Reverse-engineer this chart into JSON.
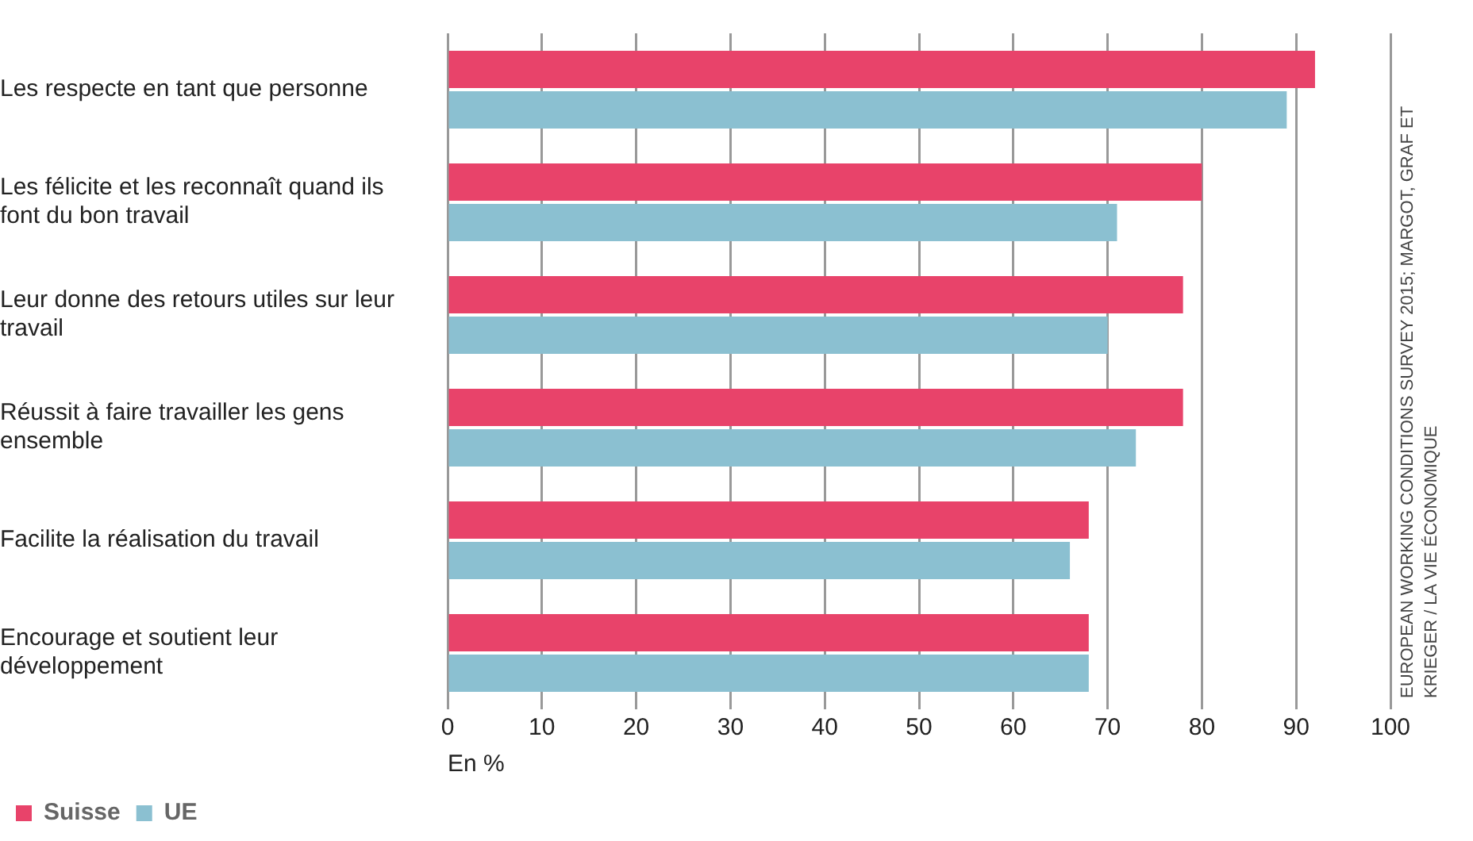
{
  "chart_data": {
    "type": "bar",
    "orientation": "horizontal",
    "categories": [
      "Les respecte en tant que personne",
      "Les félicite et les reconnaît quand ils font du bon travail",
      "Leur donne des retours utiles sur leur travail",
      "Réussit à faire travailler les gens ensemble",
      "Facilite la réalisation du travail",
      "Encourage et soutient leur développement"
    ],
    "series": [
      {
        "name": "Suisse",
        "color": "#e8436a",
        "values": [
          92,
          80,
          78,
          78,
          68,
          68
        ]
      },
      {
        "name": "UE",
        "color": "#8bc0d1",
        "values": [
          89,
          71,
          70,
          73,
          66,
          68
        ]
      }
    ],
    "xlabel": "En %",
    "xlim": [
      0,
      100
    ],
    "xticks": [
      0,
      10,
      20,
      30,
      40,
      50,
      60,
      70,
      80,
      90,
      100
    ],
    "grid": "x",
    "legend": "bottom left",
    "annotations": [
      "EUROPEAN WORKING CONDITIONS SURVEY 2015; MARGOT, GRAF ET KRIEGER / LA VIE ÉCONOMIQUE"
    ]
  }
}
